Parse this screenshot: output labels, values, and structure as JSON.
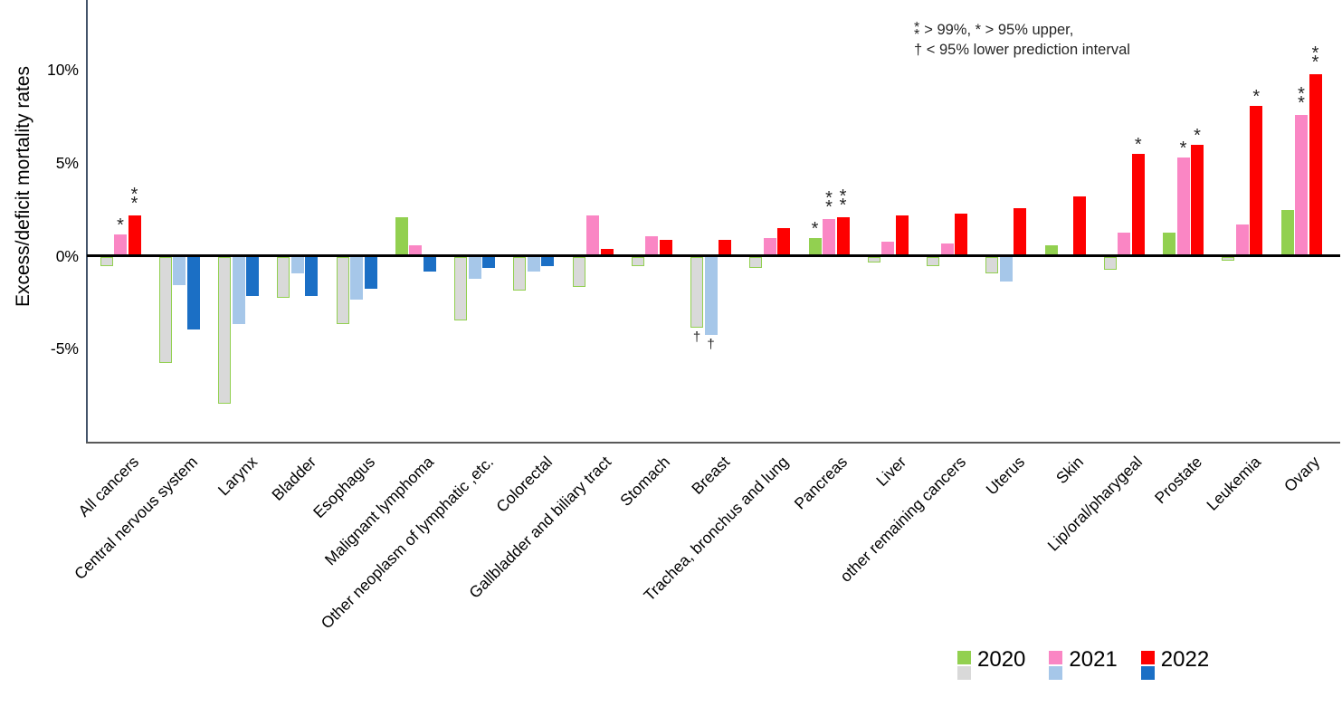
{
  "chart_data": {
    "type": "bar",
    "title": "",
    "ylabel": "Excess/deficit mortality rates",
    "xlabel": "",
    "grid": false,
    "ylim": [
      -10,
      13.8
    ],
    "y_ticks": [
      {
        "value": 10,
        "label": "10%"
      },
      {
        "value": 5,
        "label": "5%"
      },
      {
        "value": 0,
        "label": "0%"
      },
      {
        "value": -5,
        "label": "-5%"
      }
    ],
    "categories": [
      "All cancers",
      "Central nervous system",
      "Larynx",
      "Bladder",
      "Esophagus",
      "Malignant lymphoma",
      "Other neoplasm of lymphatic ,etc.",
      "Colorectal",
      "Gallbladder and biliary tract",
      "Stomach",
      "Breast",
      "Trachea, bronchus and lung",
      "Pancreas",
      "Liver",
      "other remaining cancers",
      "Uterus",
      "Skin",
      "Lip/oral/pharygeal",
      "Prostate",
      "Leukemia",
      "Ovary"
    ],
    "series": [
      {
        "name": "2020",
        "positive_color": "#92D050",
        "negative_fill": "#D9D9D9",
        "negative_border": "#92D050",
        "values": [
          -0.5,
          -5.7,
          -7.9,
          -2.2,
          -3.6,
          2.0,
          -3.4,
          -1.8,
          -1.6,
          -0.5,
          -3.8,
          -0.6,
          0.9,
          -0.3,
          -0.5,
          -0.9,
          0.5,
          -0.7,
          1.2,
          -0.2,
          2.4
        ],
        "markers": [
          "",
          "",
          "",
          "",
          "",
          "",
          "",
          "",
          "",
          "",
          "†",
          "",
          "*",
          "",
          "",
          "",
          "",
          "",
          "",
          "",
          ""
        ]
      },
      {
        "name": "2021",
        "positive_color": "#FA86C4",
        "negative_fill": "#A6C7E9",
        "negative_border": "",
        "values": [
          1.1,
          -1.5,
          -3.6,
          -0.9,
          -2.3,
          0.5,
          -1.2,
          -0.8,
          2.1,
          1.0,
          -4.2,
          0.9,
          1.9,
          0.7,
          0.6,
          -1.3,
          0,
          1.2,
          5.2,
          1.6,
          7.5
        ],
        "markers": [
          "*",
          "",
          "",
          "",
          "",
          "",
          "",
          "",
          "",
          "",
          "†",
          "",
          "**",
          "",
          "",
          "",
          "",
          "",
          "*",
          "",
          "**"
        ]
      },
      {
        "name": "2022",
        "positive_color": "#FE0000",
        "negative_fill": "#1B6FC5",
        "negative_border": "",
        "values": [
          2.1,
          -3.9,
          -2.1,
          -2.1,
          -1.7,
          -0.8,
          -0.6,
          -0.5,
          0.3,
          0.8,
          0.8,
          1.4,
          2.0,
          2.1,
          2.2,
          2.5,
          3.1,
          5.4,
          5.9,
          8.0,
          9.7
        ],
        "markers": [
          "**",
          "",
          "",
          "",
          "",
          "",
          "",
          "",
          "",
          "",
          "",
          "",
          "**",
          "",
          "",
          "",
          "",
          "*",
          "*",
          "*",
          "**"
        ]
      }
    ],
    "legend": {
      "position": "bottom-right",
      "entries": [
        {
          "label": "2020",
          "top_color": "#92D050",
          "bottom_color": "#D9D9D9"
        },
        {
          "label": "2021",
          "top_color": "#FA86C4",
          "bottom_color": "#A6C7E9"
        },
        {
          "label": "2022",
          "top_color": "#FE0000",
          "bottom_color": "#1B6FC5"
        }
      ]
    },
    "annotation": {
      "line1_symbol": "**",
      "line1_text": "> 99%,  * > 95% upper,",
      "line2_text": "† < 95% lower prediction interval"
    },
    "axis_colors": {
      "zero_line": "#000000",
      "bottom_frame": "#595959",
      "y_axis_line": "#44546A"
    }
  }
}
